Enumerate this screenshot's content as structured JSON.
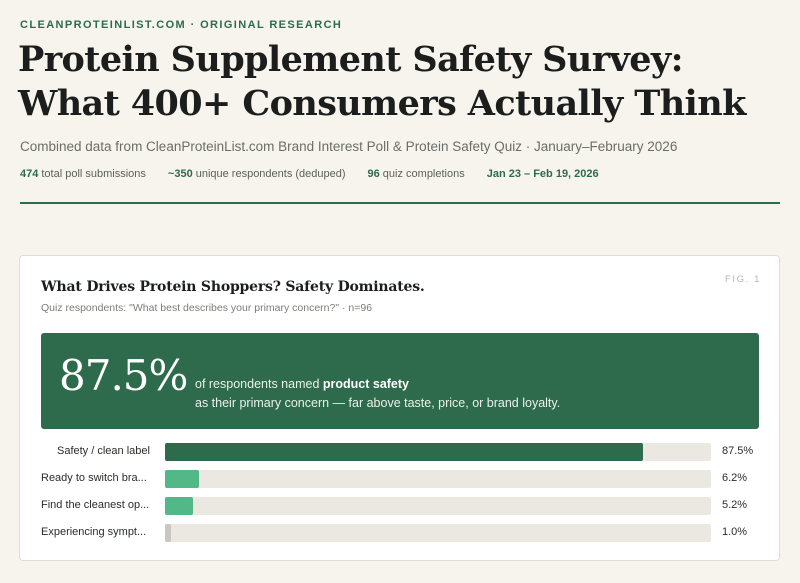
{
  "header": {
    "eyebrow": "CLEANPROTEINLIST.COM · ORIGINAL RESEARCH",
    "title_line1": "Protein Supplement Safety Survey:",
    "title_line2": "What 400+ Consumers Actually Think",
    "subtitle": "Combined data from CleanProteinList.com Brand Interest Poll & Protein Safety Quiz · January–February 2026"
  },
  "stats": [
    {
      "value": "474",
      "label": "total poll submissions"
    },
    {
      "value": "~350",
      "label": "unique respondents (deduped)"
    },
    {
      "value": "96",
      "label": "quiz completions"
    },
    {
      "value": "Jan 23 – Feb 19, 2026",
      "label": ""
    }
  ],
  "figure": {
    "tag": "FIG. 1",
    "title": "What Drives Protein Shoppers? Safety Dominates.",
    "subtitle": "Quiz respondents: \"What best describes your primary concern?\" · n=96",
    "callout": {
      "big_number": "87.5%",
      "text_prefix": "of respondents named",
      "text_bold": "product safety",
      "text_line2": "as their primary concern — far above taste, price, or brand loyalty."
    }
  },
  "chart_data": {
    "type": "bar",
    "categories": [
      "Safety / clean label",
      "Ready to switch bra...",
      "Find the cleanest op...",
      "Experiencing sympt..."
    ],
    "values": [
      87.5,
      6.2,
      5.2,
      1.0
    ],
    "value_labels": [
      "87.5%",
      "6.2%",
      "5.2%",
      "1.0%"
    ],
    "xlim": [
      0,
      100
    ],
    "colors": [
      "#2e6b4c",
      "#52b888",
      "#52b888",
      "#c9c7c1"
    ]
  }
}
